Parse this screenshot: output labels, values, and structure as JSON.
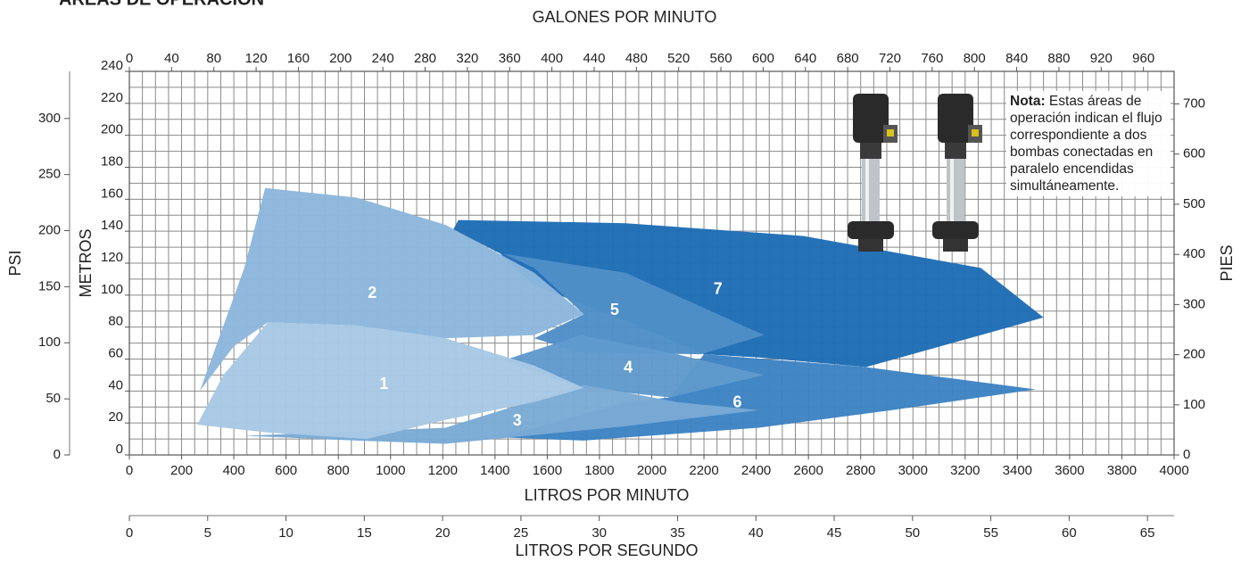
{
  "chart_data": {
    "type": "area",
    "title": "ÁREAS DE OPERACIÓN",
    "note_bold": "Nota:",
    "note": "Estas áreas de operación indican el flujo correspondiente a dos bombas conectadas en paralelo encendidas simultáneamente.",
    "xlabel": "LITROS POR MINUTO",
    "xlim": [
      0,
      4000
    ],
    "xticks": [
      0,
      200,
      400,
      600,
      800,
      1000,
      1200,
      1400,
      1600,
      1800,
      2000,
      2200,
      2400,
      2600,
      2800,
      3000,
      3200,
      3400,
      3600,
      3800,
      4000
    ],
    "x2label": "GALONES POR MINUTO",
    "x2lim": [
      0,
      989
    ],
    "x2ticks": [
      0,
      40,
      80,
      120,
      160,
      200,
      240,
      280,
      320,
      360,
      400,
      440,
      480,
      520,
      560,
      600,
      640,
      680,
      720,
      760,
      800,
      840,
      880,
      920,
      960
    ],
    "x3label": "LITROS POR SEGUNDO",
    "x3lim": [
      0,
      66.7
    ],
    "x3ticks": [
      0,
      5,
      10,
      15,
      20,
      25,
      30,
      35,
      40,
      45,
      50,
      55,
      60,
      65
    ],
    "ylabel": "METROS",
    "ylim": [
      0,
      240
    ],
    "yticks": [
      0,
      20,
      40,
      60,
      80,
      100,
      120,
      140,
      160,
      180,
      200,
      220,
      240
    ],
    "y2label": "PIES",
    "y2lim": [
      0,
      765
    ],
    "y2ticks": [
      0,
      100,
      200,
      300,
      400,
      500,
      600,
      700
    ],
    "y3label": "PSI",
    "y3lim": [
      0,
      342
    ],
    "y3ticks": [
      0,
      50,
      100,
      150,
      200,
      250,
      300
    ],
    "grid": true,
    "series": [
      {
        "name": "7",
        "color": "#1f6db5",
        "x": [
          1240,
          1260,
          1900,
          2580,
          3260,
          3500,
          3260,
          2820,
          2410,
          2200,
          1900,
          1550,
          1420
        ],
        "values": [
          141,
          147,
          145,
          137,
          117,
          86,
          75,
          55,
          61,
          63,
          84,
          106,
          126
        ]
      },
      {
        "name": "6",
        "color": "#3d83c3",
        "x": [
          2200,
          2820,
          3470,
          2920,
          2410,
          1740,
          1420,
          1900,
          2070
        ],
        "values": [
          63,
          55,
          41,
          28,
          17,
          9,
          11,
          33,
          36
        ]
      },
      {
        "name": "5",
        "color": "#4e8ec7",
        "x": [
          1430,
          1900,
          2200,
          2430,
          2190,
          1730,
          1550,
          1740,
          1550
        ],
        "values": [
          126,
          114,
          92,
          75,
          63,
          64,
          73,
          88,
          117
        ]
      },
      {
        "name": "4",
        "color": "#5f9acc",
        "x": [
          1430,
          1730,
          2070,
          2430,
          2070,
          1730
        ],
        "values": [
          59,
          75,
          64,
          50,
          36,
          42
        ]
      },
      {
        "name": "3",
        "color": "#7aaad5",
        "x": [
          440,
          1210,
          1740,
          2100,
          2410,
          1900,
          1210,
          870
        ],
        "values": [
          12,
          17,
          44,
          33,
          28,
          18,
          7,
          9
        ]
      },
      {
        "name": "2",
        "color": "#8cb7dc",
        "x": [
          270,
          440,
          520,
          870,
          1210,
          1550,
          1740,
          1550,
          1210,
          870,
          530,
          400
        ],
        "values": [
          40,
          117,
          167,
          161,
          144,
          114,
          88,
          75,
          73,
          81,
          83,
          68
        ]
      },
      {
        "name": "1",
        "color": "#a7c8e4",
        "x": [
          260,
          360,
          530,
          870,
          1210,
          1550,
          1740,
          1550,
          1210,
          910,
          530
        ],
        "values": [
          19,
          50,
          83,
          81,
          73,
          56,
          42,
          33,
          22,
          10,
          14
        ]
      }
    ]
  }
}
